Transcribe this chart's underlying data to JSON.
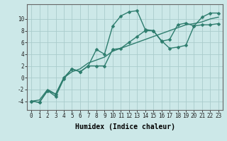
{
  "x_ticks": [
    0,
    1,
    2,
    3,
    4,
    5,
    6,
    7,
    8,
    9,
    10,
    11,
    12,
    13,
    14,
    15,
    16,
    17,
    18,
    19,
    20,
    21,
    22,
    23
  ],
  "line1_x": [
    0,
    1,
    2,
    3,
    4,
    5,
    6,
    7,
    8,
    9,
    10,
    11,
    12,
    13,
    14,
    15,
    16,
    17,
    18,
    19,
    20,
    21,
    22,
    23
  ],
  "line1_y": [
    -4,
    -4.2,
    -2.2,
    -3.2,
    -0.2,
    1.5,
    1.0,
    2.0,
    4.8,
    4.0,
    8.8,
    10.5,
    11.2,
    11.4,
    8.2,
    8.0,
    6.2,
    6.5,
    9.0,
    9.3,
    8.8,
    10.3,
    11.0,
    11.0
  ],
  "line2_x": [
    0,
    1,
    2,
    3,
    4,
    5,
    6,
    7,
    8,
    9,
    10,
    11,
    12,
    13,
    14,
    15,
    16,
    17,
    18,
    19,
    20,
    21,
    22,
    23
  ],
  "line2_y": [
    -4,
    -4.2,
    -2.2,
    -2.8,
    0.0,
    1.5,
    1.0,
    2.0,
    2.0,
    2.0,
    4.8,
    5.0,
    6.0,
    7.0,
    8.0,
    8.0,
    6.3,
    5.0,
    5.2,
    5.5,
    8.8,
    9.0,
    9.0,
    9.2
  ],
  "line3_x": [
    0,
    1,
    2,
    3,
    4,
    5,
    6,
    7,
    8,
    9,
    10,
    11,
    12,
    13,
    14,
    15,
    16,
    17,
    18,
    19,
    20,
    21,
    22,
    23
  ],
  "line3_y": [
    -4.0,
    -3.8,
    -2.0,
    -2.8,
    0.0,
    1.0,
    1.5,
    2.5,
    3.0,
    3.5,
    4.5,
    5.0,
    5.5,
    6.0,
    6.5,
    7.0,
    7.5,
    8.0,
    8.5,
    9.0,
    9.2,
    9.5,
    10.0,
    10.3
  ],
  "line_color": "#2e7d6e",
  "bg_color": "#cce8e8",
  "grid_color": "#aacccc",
  "xlabel": "Humidex (Indice chaleur)",
  "ylim": [
    -5.5,
    12.5
  ],
  "xlim": [
    -0.5,
    23.5
  ],
  "yticks": [
    -4,
    -2,
    0,
    2,
    4,
    6,
    8,
    10
  ],
  "markersize": 2.5,
  "linewidth": 1.0,
  "xlabel_fontsize": 7,
  "tick_fontsize": 5.5
}
